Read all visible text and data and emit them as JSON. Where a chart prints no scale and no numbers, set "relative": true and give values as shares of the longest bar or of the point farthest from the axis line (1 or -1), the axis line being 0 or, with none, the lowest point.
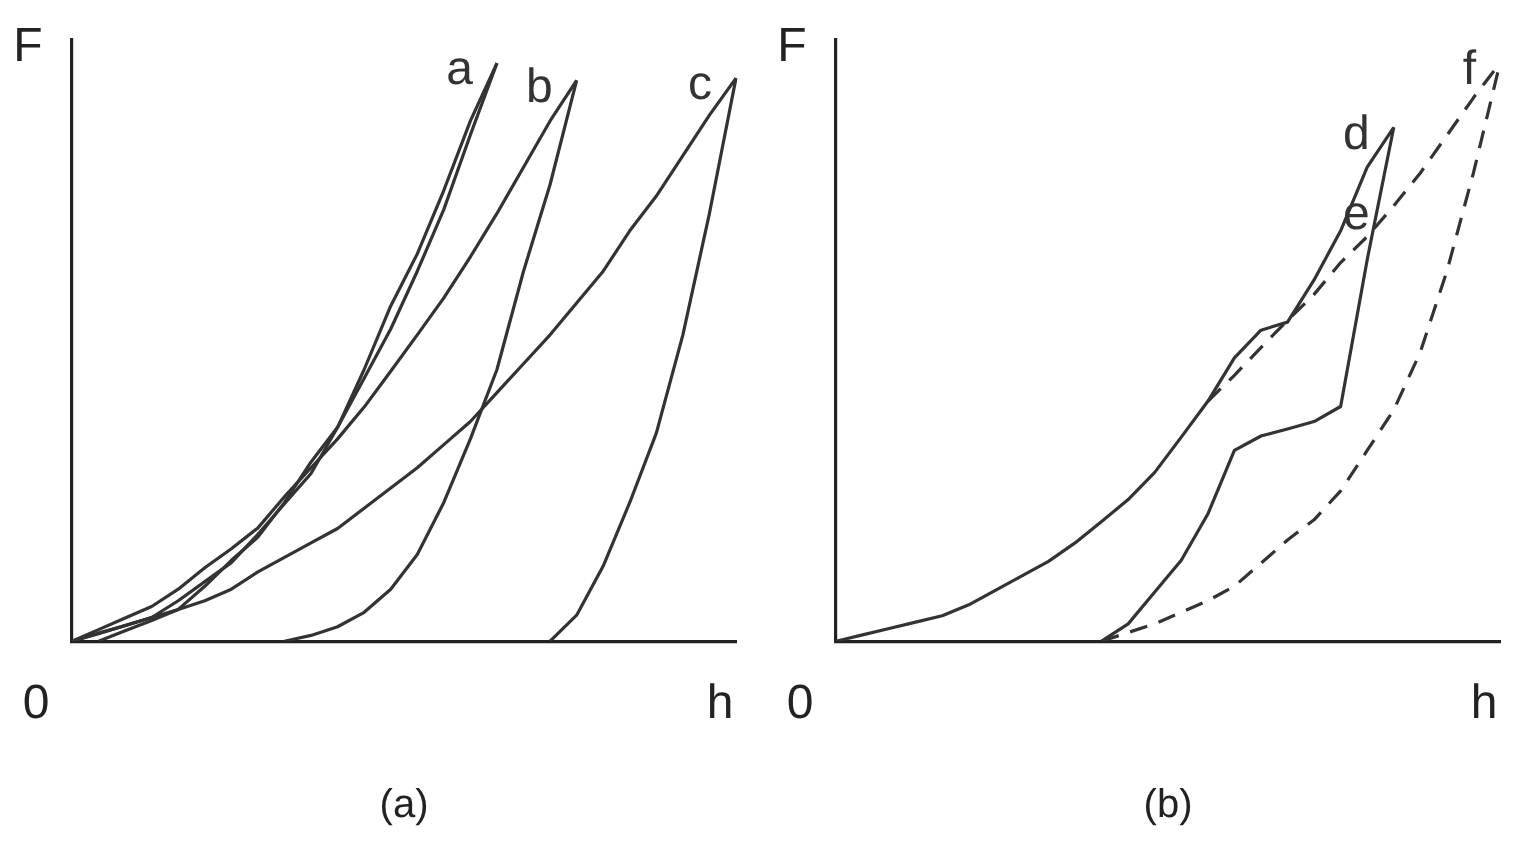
{
  "chart_data": [
    {
      "type": "line",
      "title": "(a)",
      "xlabel": "h",
      "ylabel": "F",
      "relative": true,
      "legend": false,
      "marker": "none",
      "grid": false,
      "annotations": [
        "0"
      ],
      "categories": [
        null,
        null,
        null,
        null,
        null,
        null,
        null,
        null,
        null,
        null,
        null,
        null,
        null,
        null,
        null,
        null,
        null,
        null,
        null,
        null,
        null,
        null,
        null,
        null,
        null,
        null
      ],
      "series": [
        {
          "name": "a",
          "color": "#333333",
          "line_style": "solid",
          "values": [
            0,
            0.013,
            0.027,
            0.041,
            0.07,
            0.103,
            0.136,
            0.185,
            0.238,
            0.29,
            0.37,
            0.455,
            0.54,
            0.64,
            0.747,
            0.876,
            1,
            null,
            null,
            null,
            null,
            null,
            null,
            null,
            null,
            null
          ]
        },
        {
          "color": "#333333",
          "line_style": "solid",
          "values": [
            null,
            0,
            0.018,
            0.036,
            0.055,
            0.095,
            0.14,
            0.18,
            0.24,
            0.31,
            0.37,
            0.47,
            0.58,
            0.67,
            0.78,
            0.9,
            1,
            null,
            null,
            null,
            null,
            null,
            null,
            null,
            null,
            null
          ]
        },
        {
          "name": "b",
          "color": "#333333",
          "line_style": "solid",
          "values": [
            0,
            0.02,
            0.04,
            0.06,
            0.09,
            0.127,
            0.16,
            0.196,
            0.25,
            0.3,
            0.35,
            0.405,
            0.467,
            0.53,
            0.594,
            0.665,
            0.74,
            0.82,
            0.9,
            0.97,
            null,
            null,
            null,
            null,
            null,
            null
          ]
        },
        {
          "color": "#333333",
          "line_style": "solid",
          "values": [
            null,
            null,
            null,
            null,
            null,
            null,
            null,
            null,
            0,
            0.01,
            0.025,
            0.05,
            0.09,
            0.15,
            0.24,
            0.35,
            0.47,
            0.64,
            0.79,
            0.97,
            null,
            null,
            null,
            null,
            null,
            null
          ]
        },
        {
          "name": "c",
          "color": "#333333",
          "line_style": "solid",
          "values": [
            0,
            0.014,
            0.027,
            0.041,
            0.055,
            0.07,
            0.09,
            0.12,
            0.145,
            0.17,
            0.195,
            0.23,
            0.265,
            0.3,
            0.34,
            0.38,
            0.43,
            0.48,
            0.53,
            0.585,
            0.64,
            0.71,
            0.77,
            0.84,
            0.91,
            0.974
          ]
        },
        {
          "color": "#333333",
          "line_style": "solid",
          "values": [
            null,
            null,
            null,
            null,
            null,
            null,
            null,
            null,
            null,
            null,
            null,
            null,
            null,
            null,
            null,
            null,
            null,
            null,
            0,
            0.045,
            0.13,
            0.24,
            0.36,
            0.53,
            0.74,
            0.974
          ]
        }
      ]
    },
    {
      "type": "line",
      "title": "(b)",
      "xlabel": "h",
      "ylabel": "F",
      "relative": true,
      "legend": false,
      "marker": "none",
      "grid": false,
      "annotations": [
        "0"
      ],
      "categories": [
        null,
        null,
        null,
        null,
        null,
        null,
        null,
        null,
        null,
        null,
        null,
        null,
        null,
        null,
        null,
        null,
        null,
        null,
        null,
        null,
        null,
        null,
        null,
        null,
        null,
        null
      ],
      "series": [
        {
          "name": "d",
          "color": "#333333",
          "line_style": "solid",
          "values": [
            0,
            0.011,
            0.022,
            0.033,
            0.044,
            0.063,
            0.088,
            0.113,
            0.138,
            0.17,
            0.207,
            0.245,
            0.292,
            0.353,
            0.415,
            0.49,
            0.538,
            0.552,
            0.625,
            0.71,
            0.82,
            0.889,
            null,
            null,
            null,
            null
          ]
        },
        {
          "name": "e",
          "color": "#333333",
          "line_style": "solid",
          "values": [
            null,
            null,
            null,
            null,
            null,
            null,
            null,
            null,
            null,
            null,
            0,
            0.03,
            0.085,
            0.14,
            0.22,
            0.33,
            0.355,
            0.367,
            0.38,
            0.406,
            0.66,
            0.889,
            null,
            null,
            null,
            null
          ]
        },
        {
          "color": "#333333",
          "line_style": "dashed",
          "values": [
            null,
            null,
            null,
            null,
            null,
            null,
            null,
            null,
            null,
            null,
            null,
            null,
            null,
            null,
            0.415,
            0.46,
            0.508,
            0.555,
            0.6,
            0.655,
            0.7,
            0.753,
            0.81,
            0.875,
            0.94,
            1
          ]
        },
        {
          "name": "f",
          "color": "#333333",
          "line_style": "dashed",
          "values": [
            null,
            null,
            null,
            null,
            null,
            null,
            null,
            null,
            null,
            null,
            0,
            0.015,
            0.03,
            0.05,
            0.07,
            0.095,
            0.135,
            0.175,
            0.21,
            0.26,
            0.33,
            0.4,
            0.5,
            0.64,
            0.81,
            1
          ]
        }
      ]
    }
  ]
}
